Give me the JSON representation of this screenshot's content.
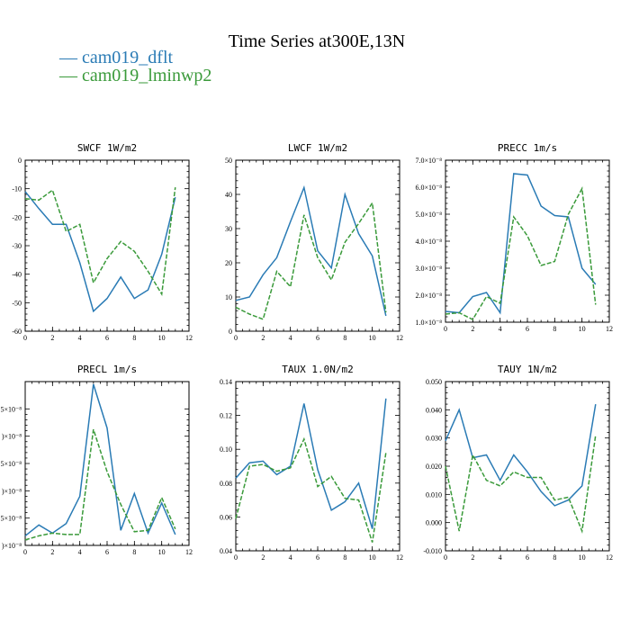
{
  "figure": {
    "title": "Time Series at300E,13N",
    "legend": [
      {
        "label": "— cam019_dflt",
        "color": "#2a7bb5"
      },
      {
        "label": "— cam019_lminwp2",
        "color": "#3a9a3a"
      }
    ]
  },
  "chart_data": [
    {
      "type": "line",
      "title": "SWCF   1W/m2",
      "xlim": [
        0,
        12
      ],
      "ylim": [
        -60,
        0
      ],
      "xticks": [
        0,
        2,
        4,
        6,
        8,
        10,
        12
      ],
      "yticks": [
        -60,
        -50,
        -40,
        -30,
        -20,
        -10,
        0
      ],
      "ytick_labels": [
        "-60",
        "-50",
        "-40",
        "-30",
        "-20",
        "-10",
        "0"
      ],
      "x": [
        0,
        1,
        2,
        3,
        4,
        5,
        6,
        7,
        8,
        9,
        10,
        11
      ],
      "series": [
        {
          "name": "cam019_dflt",
          "values": [
            -11,
            -17,
            -22.5,
            -22.5,
            -36,
            -53,
            -48.5,
            -41,
            -48.5,
            -45.5,
            -33,
            -13
          ]
        },
        {
          "name": "cam019_lminwp2",
          "values": [
            -13.5,
            -14,
            -10.5,
            -25,
            -22.5,
            -43,
            -34.5,
            -28.5,
            -32,
            -39,
            -47,
            -9.5
          ]
        }
      ]
    },
    {
      "type": "line",
      "title": "LWCF   1W/m2",
      "xlim": [
        0,
        12
      ],
      "ylim": [
        0,
        50
      ],
      "xticks": [
        0,
        2,
        4,
        6,
        8,
        10,
        12
      ],
      "yticks": [
        0,
        10,
        20,
        30,
        40,
        50
      ],
      "ytick_labels": [
        "0",
        "10",
        "20",
        "30",
        "40",
        "50"
      ],
      "x": [
        0,
        1,
        2,
        3,
        4,
        5,
        6,
        7,
        8,
        9,
        10,
        11
      ],
      "series": [
        {
          "name": "cam019_dflt",
          "values": [
            9,
            10,
            16.5,
            21.5,
            32,
            42,
            23.5,
            18.5,
            40,
            28.5,
            22,
            4.5
          ]
        },
        {
          "name": "cam019_lminwp2",
          "values": [
            7,
            5,
            3.5,
            17.5,
            13,
            34,
            21.5,
            15,
            26,
            31.5,
            37.5,
            5.5
          ]
        }
      ]
    },
    {
      "type": "line",
      "title": "PRECC   1m/s",
      "xlim": [
        0,
        12
      ],
      "ylim": [
        1e-08,
        7e-08
      ],
      "xticks": [
        0,
        2,
        4,
        6,
        8,
        10,
        12
      ],
      "yticks": [
        1e-08,
        2e-08,
        3e-08,
        4e-08,
        5e-08,
        6e-08,
        7e-08
      ],
      "ytick_labels": [
        "1.0×10⁻⁸",
        "2.0×10⁻⁸",
        "3.0×10⁻⁸",
        "4.0×10⁻⁸",
        "5.0×10⁻⁸",
        "6.0×10⁻⁸",
        "7.0×10⁻⁸"
      ],
      "x": [
        0,
        1,
        2,
        3,
        4,
        5,
        6,
        7,
        8,
        9,
        10,
        11
      ],
      "series": [
        {
          "name": "cam019_dflt",
          "values": [
            1.4e-08,
            1.35e-08,
            1.95e-08,
            2.1e-08,
            1.35e-08,
            6.5e-08,
            6.45e-08,
            5.3e-08,
            4.95e-08,
            4.9e-08,
            3e-08,
            2.4e-08
          ]
        },
        {
          "name": "cam019_lminwp2",
          "values": [
            1.3e-08,
            1.35e-08,
            1.1e-08,
            1.95e-08,
            1.7e-08,
            4.9e-08,
            4.2e-08,
            3.1e-08,
            3.25e-08,
            5e-08,
            5.95e-08,
            1.65e-08
          ]
        }
      ]
    },
    {
      "type": "line",
      "title": "PRECL   1m/s",
      "xlim": [
        0,
        12
      ],
      "ylim": [
        0,
        6
      ],
      "xticks": [
        0,
        2,
        4,
        6,
        8,
        10,
        12
      ],
      "yticks": [
        0,
        1,
        2,
        3,
        4,
        5
      ],
      "ytick_labels": [
        ")×10⁻⁸",
        "5×10⁻⁸",
        ")×10⁻⁸",
        "5×10⁻⁸",
        ")×10⁻⁸",
        "5×10⁻⁸"
      ],
      "x": [
        0,
        1,
        2,
        3,
        4,
        5,
        6,
        7,
        8,
        9,
        10,
        11
      ],
      "series": [
        {
          "name": "cam019_dflt",
          "values": [
            0.35,
            0.75,
            0.45,
            0.8,
            1.8,
            5.9,
            4.3,
            0.55,
            1.9,
            0.45,
            1.55,
            0.4
          ]
        },
        {
          "name": "cam019_lminwp2",
          "values": [
            0.2,
            0.35,
            0.45,
            0.4,
            0.4,
            4.25,
            2.7,
            1.5,
            0.5,
            0.55,
            1.75,
            0.6
          ]
        }
      ]
    },
    {
      "type": "line",
      "title": "TAUX   1.0N/m2",
      "xlim": [
        0,
        12
      ],
      "ylim": [
        0.04,
        0.14
      ],
      "xticks": [
        0,
        2,
        4,
        6,
        8,
        10,
        12
      ],
      "yticks": [
        0.04,
        0.06,
        0.08,
        0.1,
        0.12,
        0.14
      ],
      "ytick_labels": [
        "0.04",
        "0.06",
        "0.08",
        "0.10",
        "0.12",
        "0.14"
      ],
      "x": [
        0,
        1,
        2,
        3,
        4,
        5,
        6,
        7,
        8,
        9,
        10,
        11
      ],
      "series": [
        {
          "name": "cam019_dflt",
          "values": [
            0.083,
            0.092,
            0.093,
            0.085,
            0.09,
            0.127,
            0.088,
            0.064,
            0.069,
            0.08,
            0.053,
            0.13
          ]
        },
        {
          "name": "cam019_lminwp2",
          "values": [
            0.059,
            0.09,
            0.091,
            0.087,
            0.089,
            0.106,
            0.078,
            0.084,
            0.071,
            0.07,
            0.045,
            0.098
          ]
        }
      ]
    },
    {
      "type": "line",
      "title": "TAUY   1N/m2",
      "xlim": [
        0,
        12
      ],
      "ylim": [
        -0.01,
        0.05
      ],
      "xticks": [
        0,
        2,
        4,
        6,
        8,
        10,
        12
      ],
      "yticks": [
        -0.01,
        0.0,
        0.01,
        0.02,
        0.03,
        0.04,
        0.05
      ],
      "ytick_labels": [
        "-0.010",
        "0.000",
        "0.010",
        "0.020",
        "0.030",
        "0.040",
        "0.050"
      ],
      "x": [
        0,
        1,
        2,
        3,
        4,
        5,
        6,
        7,
        8,
        9,
        10,
        11
      ],
      "series": [
        {
          "name": "cam019_dflt",
          "values": [
            0.029,
            0.04,
            0.023,
            0.024,
            0.015,
            0.024,
            0.018,
            0.011,
            0.006,
            0.008,
            0.013,
            0.042
          ]
        },
        {
          "name": "cam019_lminwp2",
          "values": [
            0.02,
            -0.003,
            0.024,
            0.015,
            0.013,
            0.018,
            0.016,
            0.016,
            0.008,
            0.009,
            -0.003,
            0.031
          ]
        }
      ]
    }
  ]
}
